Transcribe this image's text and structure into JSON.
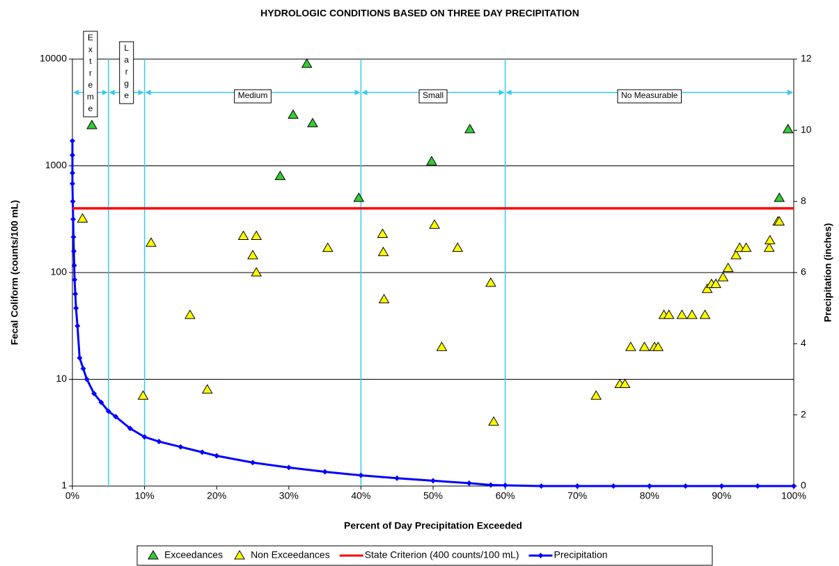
{
  "chart_data": {
    "type": "scatter",
    "title": "HYDROLOGIC CONDITIONS BASED ON THREE DAY PRECIPITATION",
    "x_label": "Percent of Day Precipitation Exceeded",
    "y_label": "Fecal Coliform (counts/100 mL)",
    "y2_label": "Precipitation (inches)",
    "xlim": [
      0,
      100
    ],
    "xticks": [
      {
        "value": 0,
        "label": "0%"
      },
      {
        "value": 10,
        "label": "10%"
      },
      {
        "value": 20,
        "label": "20%"
      },
      {
        "value": 30,
        "label": "30%"
      },
      {
        "value": 40,
        "label": "40%"
      },
      {
        "value": 50,
        "label": "50%"
      },
      {
        "value": 60,
        "label": "60%"
      },
      {
        "value": 70,
        "label": "70%"
      },
      {
        "value": 80,
        "label": "80%"
      },
      {
        "value": 90,
        "label": "90%"
      },
      {
        "value": 100,
        "label": "100%"
      }
    ],
    "ylim": [
      1,
      10000
    ],
    "yscale": "log",
    "yticks": [
      1,
      10,
      100,
      1000,
      10000
    ],
    "y2lim": [
      0,
      12
    ],
    "y2ticks": [
      0,
      2,
      4,
      6,
      8,
      10,
      12
    ],
    "grid": true,
    "legend": "bottom",
    "zones": [
      {
        "label": "Extreme",
        "start": 0,
        "end": 5
      },
      {
        "label": "Large",
        "start": 5,
        "end": 10
      },
      {
        "label": "Medium",
        "start": 10,
        "end": 40
      },
      {
        "label": "Small",
        "start": 40,
        "end": 60
      },
      {
        "label": "No Measurable",
        "start": 60,
        "end": 100
      }
    ],
    "zone_color": "#33ccee",
    "series": [
      {
        "name": "Exceedances",
        "type": "scatter",
        "marker": "triangle",
        "color": "#33cc33",
        "x": [
          2.7,
          28.8,
          30.6,
          32.5,
          33.3,
          39.7,
          49.8,
          55.1,
          98.0,
          99.2
        ],
        "values": [
          2400,
          800,
          3000,
          9000,
          2500,
          500,
          1100,
          2200,
          500,
          2200
        ]
      },
      {
        "name": "Non Exceedances",
        "type": "scatter",
        "marker": "triangle",
        "color": "#ffff00",
        "x": [
          1.4,
          9.8,
          10.9,
          16.3,
          18.7,
          23.7,
          25.0,
          25.5,
          25.5,
          35.4,
          43.0,
          43.1,
          43.2,
          50.2,
          51.2,
          53.4,
          58.0,
          58.4,
          72.6,
          75.9,
          76.6,
          77.4,
          79.3,
          80.7,
          81.2,
          82.0,
          82.7,
          84.5,
          85.9,
          87.7,
          88.0,
          88.6,
          89.2,
          90.2,
          90.9,
          92.0,
          92.5,
          93.4,
          96.6,
          96.7,
          97.8,
          98.0
        ],
        "values": [
          320,
          7,
          190,
          40,
          8,
          220,
          145,
          220,
          100,
          170,
          230,
          155,
          56,
          280,
          20,
          170,
          80,
          4,
          7,
          9,
          9,
          20,
          20,
          20,
          20,
          40,
          40,
          40,
          40,
          40,
          70,
          78,
          78,
          90,
          110,
          145,
          170,
          170,
          170,
          200,
          300,
          300
        ]
      },
      {
        "name": "State Criterion (400 counts/100 mL)",
        "type": "line",
        "color": "#ff0000",
        "x": [
          0,
          100
        ],
        "values": [
          400,
          400
        ]
      },
      {
        "name": "Precipitation",
        "type": "line",
        "marker": "diamond",
        "color": "#0000ff",
        "axis": "y2",
        "x": [
          0,
          0,
          0,
          0,
          0.05,
          0.1,
          0.15,
          0.2,
          0.25,
          0.3,
          0.4,
          0.5,
          0.7,
          1,
          1.5,
          2,
          3,
          4,
          5,
          6,
          8,
          10,
          12,
          15,
          18,
          20,
          25,
          30,
          35,
          40,
          45,
          50,
          55,
          58,
          60,
          65,
          70,
          75,
          80,
          85,
          90,
          95,
          100
        ],
        "values": [
          9.7,
          9.3,
          8.8,
          8.5,
          8.0,
          7.5,
          7.0,
          6.6,
          6.2,
          5.8,
          5.4,
          5.0,
          4.5,
          3.6,
          3.3,
          3.0,
          2.6,
          2.35,
          2.1,
          1.95,
          1.62,
          1.38,
          1.25,
          1.1,
          0.95,
          0.85,
          0.66,
          0.52,
          0.4,
          0.3,
          0.22,
          0.15,
          0.08,
          0.03,
          0.02,
          0,
          0,
          0,
          0,
          0,
          0,
          0,
          0
        ]
      }
    ]
  }
}
